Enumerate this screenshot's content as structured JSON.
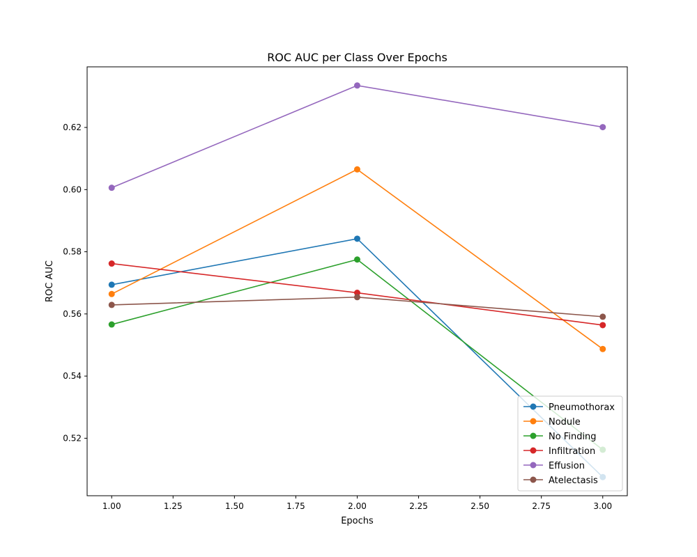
{
  "chart_data": {
    "type": "line",
    "title": "ROC AUC per Class Over Epochs",
    "xlabel": "Epochs",
    "ylabel": "ROC AUC",
    "x": [
      1,
      2,
      3
    ],
    "xlim": [
      0.9,
      3.1
    ],
    "ylim": [
      0.5015,
      0.6395
    ],
    "xticks": [
      1.0,
      1.25,
      1.5,
      1.75,
      2.0,
      2.25,
      2.5,
      2.75,
      3.0
    ],
    "xtick_labels": [
      "1.00",
      "1.25",
      "1.50",
      "1.75",
      "2.00",
      "2.25",
      "2.50",
      "2.75",
      "3.00"
    ],
    "yticks": [
      0.52,
      0.54,
      0.56,
      0.58,
      0.6,
      0.62
    ],
    "ytick_labels": [
      "0.52",
      "0.54",
      "0.56",
      "0.58",
      "0.60",
      "0.62"
    ],
    "grid": false,
    "legend_position": "lower-right",
    "marker": "circle",
    "series": [
      {
        "name": "Pneumothorax",
        "color": "#1f77b4",
        "values": [
          0.5694,
          0.5842,
          0.5075
        ]
      },
      {
        "name": "Nodule",
        "color": "#ff7f0e",
        "values": [
          0.5664,
          0.6065,
          0.5487
        ]
      },
      {
        "name": "No Finding",
        "color": "#2ca02c",
        "values": [
          0.5566,
          0.5775,
          0.5163
        ]
      },
      {
        "name": "Infiltration",
        "color": "#d62728",
        "values": [
          0.5762,
          0.5668,
          0.5564
        ]
      },
      {
        "name": "Effusion",
        "color": "#9467bd",
        "values": [
          0.6006,
          0.6335,
          0.6201
        ]
      },
      {
        "name": "Atelectasis",
        "color": "#8c564b",
        "values": [
          0.5629,
          0.5654,
          0.5591
        ]
      }
    ]
  }
}
